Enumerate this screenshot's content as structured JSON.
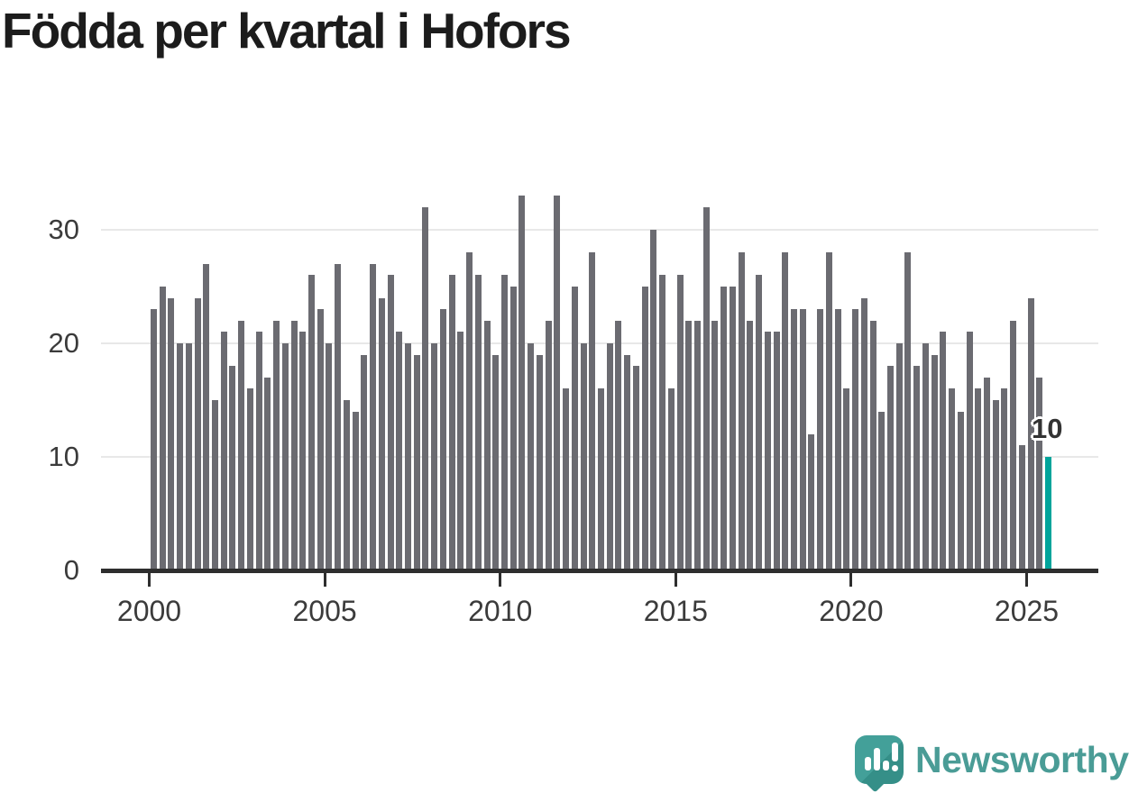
{
  "title": "Födda per kvartal i Hofors",
  "chart_data": {
    "type": "bar",
    "title": "Födda per kvartal i Hofors",
    "x_start": {
      "year": 2000,
      "quarter": 1
    },
    "x_end": {
      "year": 2025,
      "quarter": 3
    },
    "frequency": "quarterly",
    "values": [
      23,
      25,
      24,
      20,
      20,
      24,
      27,
      15,
      21,
      18,
      22,
      16,
      21,
      17,
      22,
      20,
      22,
      21,
      26,
      23,
      20,
      27,
      15,
      14,
      19,
      27,
      24,
      26,
      21,
      20,
      19,
      32,
      20,
      23,
      26,
      21,
      28,
      26,
      22,
      19,
      26,
      25,
      33,
      20,
      19,
      22,
      33,
      16,
      25,
      20,
      28,
      16,
      20,
      22,
      19,
      18,
      25,
      30,
      26,
      16,
      26,
      22,
      22,
      32,
      22,
      25,
      25,
      28,
      22,
      26,
      21,
      21,
      28,
      23,
      23,
      12,
      23,
      28,
      23,
      16,
      23,
      24,
      22,
      14,
      18,
      20,
      28,
      18,
      20,
      19,
      21,
      16,
      14,
      21,
      16,
      17,
      15,
      16,
      22,
      11,
      24,
      17,
      10
    ],
    "bar_color": "#6b6b71",
    "highlight": {
      "index": 102,
      "value": 10,
      "label": "10",
      "color": "#00a49b"
    },
    "ylim": [
      0,
      35
    ],
    "grid": true,
    "legend": "none"
  },
  "y_axis": {
    "ticks": [
      0,
      10,
      20,
      30
    ]
  },
  "x_axis": {
    "ticks": [
      "2000",
      "2005",
      "2010",
      "2015",
      "2020",
      "2025"
    ]
  },
  "branding": {
    "name": "Newsworthy",
    "color": "#4a9c96"
  }
}
